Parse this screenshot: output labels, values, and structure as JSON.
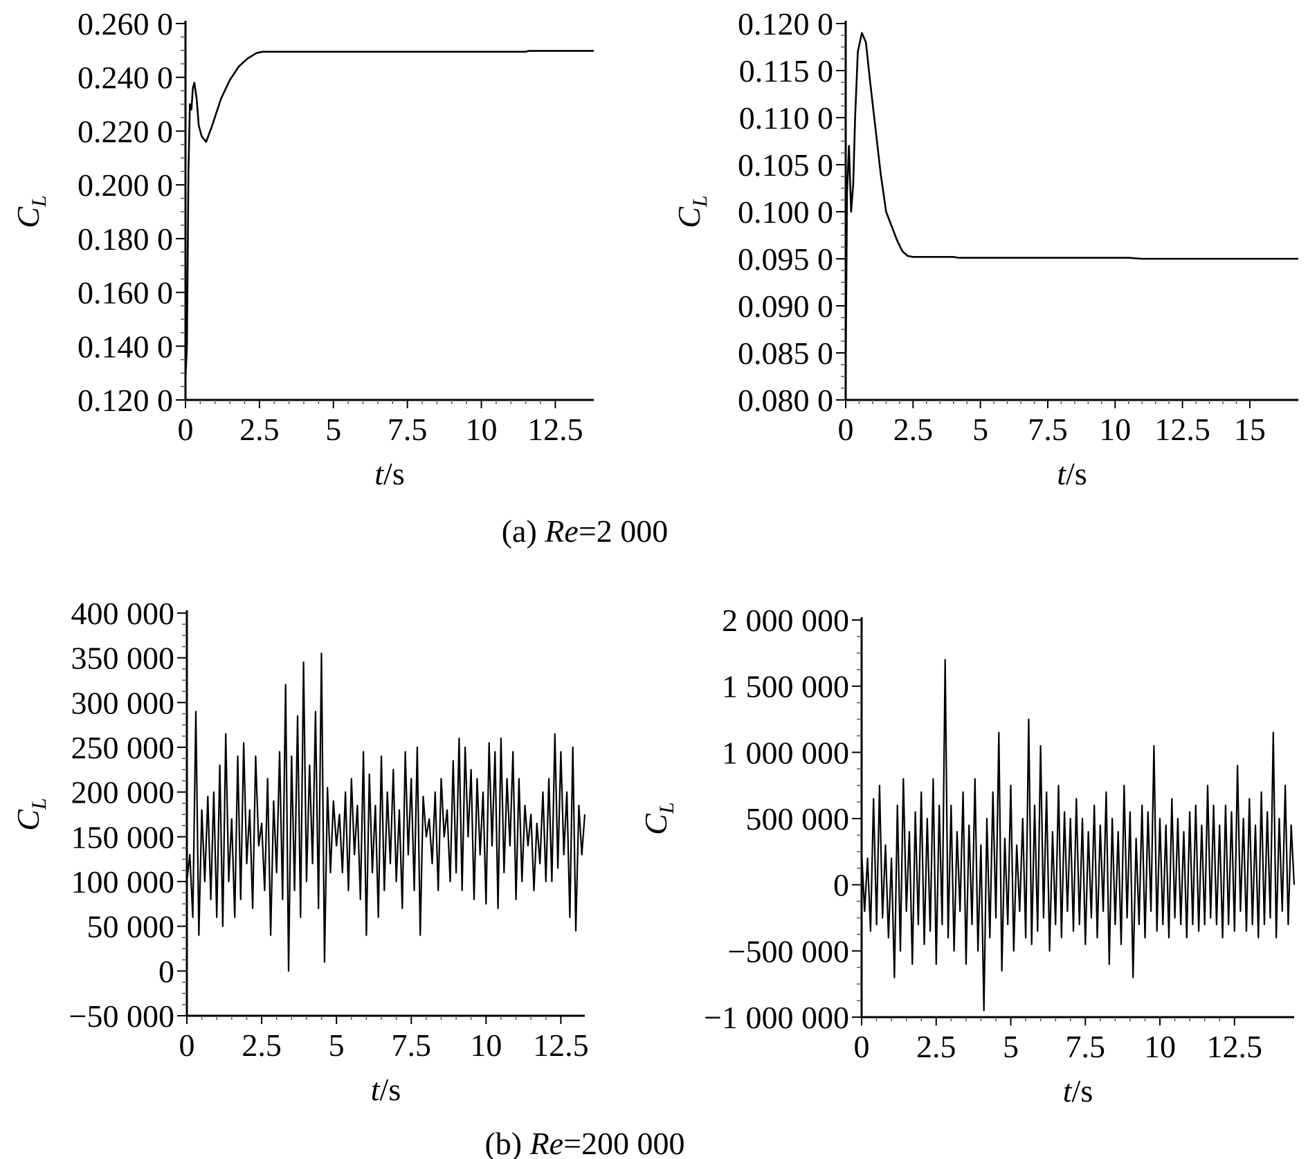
{
  "captions": [
    "(a) Re=2 000",
    "(b) Re=200 000"
  ],
  "caption_parts": [
    {
      "prefix": "(a) ",
      "re": "Re",
      "suffix": "=2 000"
    },
    {
      "prefix": "(b) ",
      "re": "Re",
      "suffix": "=200 000"
    }
  ],
  "chart_data": [
    {
      "type": "line",
      "panel": "a-left",
      "xlabel": "t/s",
      "ylabel": "C_L",
      "xlim": [
        0,
        13.8
      ],
      "ylim": [
        0.12,
        0.26
      ],
      "xticks": [
        0,
        2.5,
        5,
        7.5,
        10,
        12.5
      ],
      "xtick_labels": [
        "0",
        "2.5",
        "5",
        "7.5",
        "10",
        "12.5"
      ],
      "yticks": [
        0.12,
        0.14,
        0.16,
        0.18,
        0.2,
        0.22,
        0.24,
        0.26
      ],
      "ytick_labels": [
        "0.120 0",
        "0.140 0",
        "0.160 0",
        "0.180 0",
        "0.200 0",
        "0.220 0",
        "0.240 0",
        "0.260 0"
      ],
      "grid": false,
      "series": [
        {
          "x": [
            0,
            0.05,
            0.1,
            0.15,
            0.2,
            0.25,
            0.3,
            0.38,
            0.45,
            0.55,
            0.7,
            0.9,
            1.2,
            1.5,
            1.8,
            2.1,
            2.4,
            2.6,
            3,
            5,
            7.5,
            10,
            11.5,
            11.6,
            12.5,
            13.8
          ],
          "y": [
            0.128,
            0.14,
            0.205,
            0.23,
            0.228,
            0.236,
            0.238,
            0.232,
            0.222,
            0.218,
            0.216,
            0.222,
            0.232,
            0.239,
            0.244,
            0.247,
            0.249,
            0.2495,
            0.2495,
            0.2495,
            0.2495,
            0.2495,
            0.2495,
            0.2498,
            0.2498,
            0.2498
          ]
        }
      ]
    },
    {
      "type": "line",
      "panel": "a-right",
      "xlabel": "t/s",
      "ylabel": "C_L",
      "xlim": [
        0,
        16.8
      ],
      "ylim": [
        0.08,
        0.12
      ],
      "xticks": [
        0,
        2.5,
        5,
        7.5,
        10,
        12.5,
        15
      ],
      "xtick_labels": [
        "0",
        "2.5",
        "5",
        "7.5",
        "10",
        "12.5",
        "15"
      ],
      "yticks": [
        0.08,
        0.085,
        0.09,
        0.095,
        0.1,
        0.105,
        0.11,
        0.115,
        0.12
      ],
      "ytick_labels": [
        "0.080 0",
        "0.085 0",
        "0.090 0",
        "0.095 0",
        "0.100 0",
        "0.105 0",
        "0.110 0",
        "0.115 0",
        "0.120 0"
      ],
      "grid": false,
      "series": [
        {
          "x": [
            0,
            0.05,
            0.12,
            0.2,
            0.28,
            0.35,
            0.45,
            0.6,
            0.75,
            0.9,
            1.1,
            1.3,
            1.5,
            1.7,
            1.9,
            2.1,
            2.3,
            2.5,
            4,
            4.2,
            10.5,
            11,
            16.8
          ],
          "y": [
            0.083,
            0.102,
            0.107,
            0.1,
            0.103,
            0.11,
            0.117,
            0.119,
            0.118,
            0.114,
            0.109,
            0.104,
            0.1,
            0.0985,
            0.097,
            0.0958,
            0.0953,
            0.0952,
            0.0952,
            0.0951,
            0.0951,
            0.095,
            0.095
          ]
        }
      ]
    },
    {
      "type": "line",
      "panel": "b-left",
      "xlabel": "t/s",
      "ylabel": "C_L",
      "xlim": [
        0,
        13.3
      ],
      "ylim": [
        -50000,
        400000
      ],
      "xticks": [
        0,
        2.5,
        5,
        7.5,
        10,
        12.5
      ],
      "xtick_labels": [
        "0",
        "2.5",
        "5",
        "7.5",
        "10",
        "12.5"
      ],
      "yticks": [
        -50000,
        0,
        50000,
        100000,
        150000,
        200000,
        250000,
        300000,
        350000,
        400000
      ],
      "ytick_labels": [
        "−50 000",
        "0",
        "50 000",
        "100 000",
        "150 000",
        "200 000",
        "250 000",
        "300 000",
        "350 000",
        "400 000"
      ],
      "grid": false,
      "series": [
        {
          "x": [
            0,
            0.1,
            0.2,
            0.3,
            0.4,
            0.5,
            0.6,
            0.7,
            0.8,
            0.9,
            1,
            1.1,
            1.2,
            1.3,
            1.4,
            1.5,
            1.6,
            1.7,
            1.8,
            1.9,
            2,
            2.1,
            2.2,
            2.3,
            2.4,
            2.5,
            2.6,
            2.7,
            2.8,
            2.9,
            3,
            3.1,
            3.2,
            3.3,
            3.4,
            3.5,
            3.6,
            3.7,
            3.8,
            3.9,
            4,
            4.1,
            4.2,
            4.3,
            4.4,
            4.5,
            4.6,
            4.7,
            4.8,
            4.9,
            5,
            5.1,
            5.2,
            5.3,
            5.4,
            5.5,
            5.6,
            5.7,
            5.8,
            5.9,
            6,
            6.1,
            6.2,
            6.3,
            6.4,
            6.5,
            6.6,
            6.7,
            6.8,
            6.9,
            7,
            7.1,
            7.2,
            7.3,
            7.4,
            7.5,
            7.6,
            7.7,
            7.8,
            7.9,
            8,
            8.1,
            8.2,
            8.3,
            8.4,
            8.5,
            8.6,
            8.7,
            8.8,
            8.9,
            9,
            9.1,
            9.2,
            9.3,
            9.4,
            9.5,
            9.6,
            9.7,
            9.8,
            9.9,
            10,
            10.1,
            10.2,
            10.3,
            10.4,
            10.5,
            10.6,
            10.7,
            10.8,
            10.9,
            11,
            11.1,
            11.2,
            11.3,
            11.4,
            11.5,
            11.6,
            11.7,
            11.8,
            11.9,
            12,
            12.1,
            12.2,
            12.3,
            12.4,
            12.5,
            12.6,
            12.7,
            12.8,
            12.9,
            13,
            13.1,
            13.2,
            13.3
          ],
          "y": [
            100000,
            130000,
            60000,
            290000,
            40000,
            180000,
            100000,
            195000,
            80000,
            200000,
            60000,
            230000,
            50000,
            265000,
            100000,
            170000,
            60000,
            240000,
            80000,
            255000,
            120000,
            180000,
            70000,
            240000,
            140000,
            165000,
            90000,
            215000,
            40000,
            190000,
            110000,
            245000,
            80000,
            320000,
            0,
            240000,
            90000,
            285000,
            60000,
            345000,
            100000,
            230000,
            120000,
            290000,
            70000,
            355000,
            10000,
            205000,
            110000,
            190000,
            140000,
            175000,
            110000,
            200000,
            90000,
            215000,
            130000,
            185000,
            80000,
            245000,
            40000,
            220000,
            110000,
            185000,
            60000,
            240000,
            90000,
            200000,
            120000,
            225000,
            100000,
            180000,
            70000,
            245000,
            130000,
            215000,
            90000,
            250000,
            40000,
            195000,
            150000,
            170000,
            120000,
            200000,
            90000,
            215000,
            150000,
            180000,
            100000,
            235000,
            110000,
            260000,
            90000,
            250000,
            150000,
            225000,
            80000,
            215000,
            130000,
            200000,
            75000,
            255000,
            140000,
            245000,
            70000,
            260000,
            110000,
            215000,
            140000,
            245000,
            80000,
            215000,
            100000,
            185000,
            140000,
            175000,
            90000,
            165000,
            120000,
            200000,
            100000,
            215000,
            100000,
            265000,
            115000,
            245000,
            130000,
            200000,
            60000,
            250000,
            45000,
            185000,
            130000,
            175000
          ]
        }
      ]
    },
    {
      "type": "line",
      "panel": "b-right",
      "xlabel": "t/s",
      "ylabel": "C_L",
      "xlim": [
        0,
        14.5
      ],
      "ylim": [
        -1000000,
        2000000
      ],
      "xticks": [
        0,
        2.5,
        5,
        7.5,
        10,
        12.5
      ],
      "xtick_labels": [
        "0",
        "2.5",
        "5",
        "7.5",
        "10",
        "12.5"
      ],
      "yticks": [
        -1000000,
        -500000,
        0,
        500000,
        1000000,
        1500000,
        2000000
      ],
      "ytick_labels": [
        "−1 000 000",
        "−500 000",
        "0",
        "500 000",
        "1 000 000",
        "1 500 000",
        "2 000 000"
      ],
      "grid": false,
      "series": [
        {
          "x": [
            0,
            0.1,
            0.2,
            0.3,
            0.4,
            0.5,
            0.6,
            0.7,
            0.8,
            0.9,
            1,
            1.1,
            1.2,
            1.3,
            1.4,
            1.5,
            1.6,
            1.7,
            1.8,
            1.9,
            2,
            2.1,
            2.2,
            2.3,
            2.4,
            2.5,
            2.6,
            2.7,
            2.8,
            2.9,
            3,
            3.1,
            3.2,
            3.3,
            3.4,
            3.5,
            3.6,
            3.7,
            3.8,
            3.9,
            4,
            4.1,
            4.2,
            4.3,
            4.4,
            4.5,
            4.6,
            4.7,
            4.8,
            4.9,
            5,
            5.1,
            5.2,
            5.3,
            5.4,
            5.5,
            5.6,
            5.7,
            5.8,
            5.9,
            6,
            6.1,
            6.2,
            6.3,
            6.4,
            6.5,
            6.6,
            6.7,
            6.8,
            6.9,
            7,
            7.1,
            7.2,
            7.3,
            7.4,
            7.5,
            7.6,
            7.7,
            7.8,
            7.9,
            8,
            8.1,
            8.2,
            8.3,
            8.4,
            8.5,
            8.6,
            8.7,
            8.8,
            8.9,
            9,
            9.1,
            9.2,
            9.3,
            9.4,
            9.5,
            9.6,
            9.7,
            9.8,
            9.9,
            10,
            10.1,
            10.2,
            10.3,
            10.4,
            10.5,
            10.6,
            10.7,
            10.8,
            10.9,
            11,
            11.1,
            11.2,
            11.3,
            11.4,
            11.5,
            11.6,
            11.7,
            11.8,
            11.9,
            12,
            12.1,
            12.2,
            12.3,
            12.4,
            12.5,
            12.6,
            12.7,
            12.8,
            12.9,
            13,
            13.1,
            13.2,
            13.3,
            13.4,
            13.5,
            13.6,
            13.7,
            13.8,
            13.9,
            14,
            14.1,
            14.2,
            14.3,
            14.4,
            14.5
          ],
          "y": [
            250000,
            -200000,
            200000,
            -350000,
            650000,
            -300000,
            750000,
            -250000,
            300000,
            -400000,
            200000,
            -700000,
            600000,
            -500000,
            800000,
            -200000,
            400000,
            -600000,
            550000,
            -300000,
            700000,
            -450000,
            500000,
            -350000,
            800000,
            -600000,
            600000,
            -300000,
            1700000,
            -400000,
            600000,
            -500000,
            400000,
            -200000,
            700000,
            -600000,
            450000,
            -300000,
            800000,
            -500000,
            300000,
            -950000,
            500000,
            -400000,
            700000,
            -250000,
            1150000,
            -650000,
            350000,
            -300000,
            750000,
            -500000,
            300000,
            -200000,
            500000,
            -400000,
            1250000,
            -450000,
            600000,
            -350000,
            1050000,
            -250000,
            700000,
            -500000,
            400000,
            -300000,
            750000,
            -400000,
            550000,
            -200000,
            500000,
            -350000,
            650000,
            -300000,
            500000,
            -450000,
            400000,
            -250000,
            600000,
            -400000,
            450000,
            -200000,
            700000,
            -600000,
            500000,
            -300000,
            400000,
            -450000,
            750000,
            -250000,
            550000,
            -700000,
            350000,
            -300000,
            600000,
            -400000,
            550000,
            -200000,
            1050000,
            -350000,
            500000,
            -300000,
            450000,
            -400000,
            650000,
            -250000,
            500000,
            -300000,
            400000,
            -400000,
            550000,
            -300000,
            600000,
            -350000,
            450000,
            -300000,
            750000,
            -250000,
            600000,
            -300000,
            450000,
            -400000,
            600000,
            -300000,
            550000,
            -350000,
            900000,
            -200000,
            500000,
            -350000,
            650000,
            -300000,
            450000,
            -400000,
            700000,
            -300000,
            550000,
            -250000,
            1150000,
            -400000,
            500000,
            -200000,
            750000,
            -300000,
            450000,
            0
          ]
        }
      ]
    }
  ]
}
